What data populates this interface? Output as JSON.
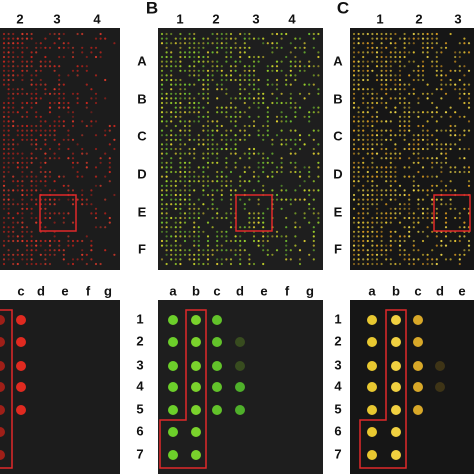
{
  "top_left": {
    "columns": [
      "2",
      "3",
      "4"
    ]
  },
  "top_middle": {
    "label": "B",
    "columns": [
      "1",
      "2",
      "3",
      "4"
    ],
    "rows": [
      "A",
      "B",
      "C",
      "D",
      "E",
      "F"
    ]
  },
  "top_right": {
    "label": "C",
    "columns": [
      "1",
      "2",
      "3"
    ],
    "rows": [
      "A",
      "B",
      "C",
      "D",
      "E",
      "F"
    ]
  },
  "bottom_left": {
    "columns": [
      "c",
      "d",
      "e",
      "f",
      "g"
    ]
  },
  "bottom_middle": {
    "columns": [
      "a",
      "b",
      "c",
      "d",
      "e",
      "f",
      "g"
    ],
    "rows": [
      "1",
      "2",
      "3",
      "4",
      "5",
      "6",
      "7"
    ]
  },
  "bottom_right": {
    "columns": [
      "a",
      "b",
      "c",
      "d",
      "e"
    ],
    "rows": [
      "1",
      "2",
      "3",
      "4",
      "5",
      "6",
      "7"
    ]
  }
}
